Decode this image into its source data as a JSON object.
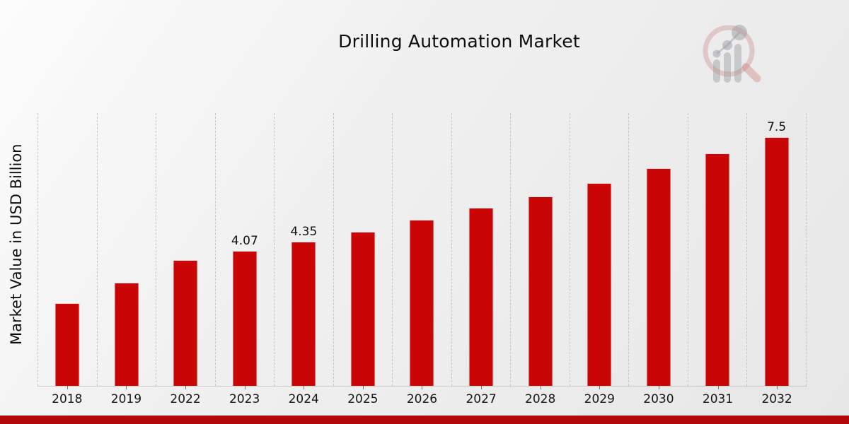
{
  "chart_data": {
    "type": "bar",
    "title": "Drilling Automation Market",
    "ylabel": "Market Value in USD Billion",
    "xlabel": "",
    "categories": [
      "2018",
      "2019",
      "2022",
      "2023",
      "2024",
      "2025",
      "2026",
      "2027",
      "2028",
      "2029",
      "2030",
      "2031",
      "2032"
    ],
    "values": [
      2.49,
      3.11,
      3.8,
      4.07,
      4.35,
      4.65,
      5.0,
      5.37,
      5.7,
      6.12,
      6.55,
      7.0,
      7.5
    ],
    "bar_labels": [
      "",
      "",
      "",
      "4.07",
      "4.35",
      "",
      "",
      "",
      "",
      "",
      "",
      "",
      "7.5"
    ],
    "ylim": [
      0,
      8.22
    ],
    "grid": "vertical dashed separators between categories",
    "legend_position": "none",
    "bar_color": "#c90505",
    "bar_edge_color": "#dcdcdc",
    "axis_color": "#c9c9c9",
    "text_color": "#111111"
  },
  "watermark": {
    "description": "magnifying-glass-with-bar-chart logo watermark",
    "ring_color": "rgba(197,110,110,0.32)",
    "glyph_color": "rgba(138,140,146,0.42)"
  },
  "footer": {
    "stripe_color": "#b30808"
  }
}
